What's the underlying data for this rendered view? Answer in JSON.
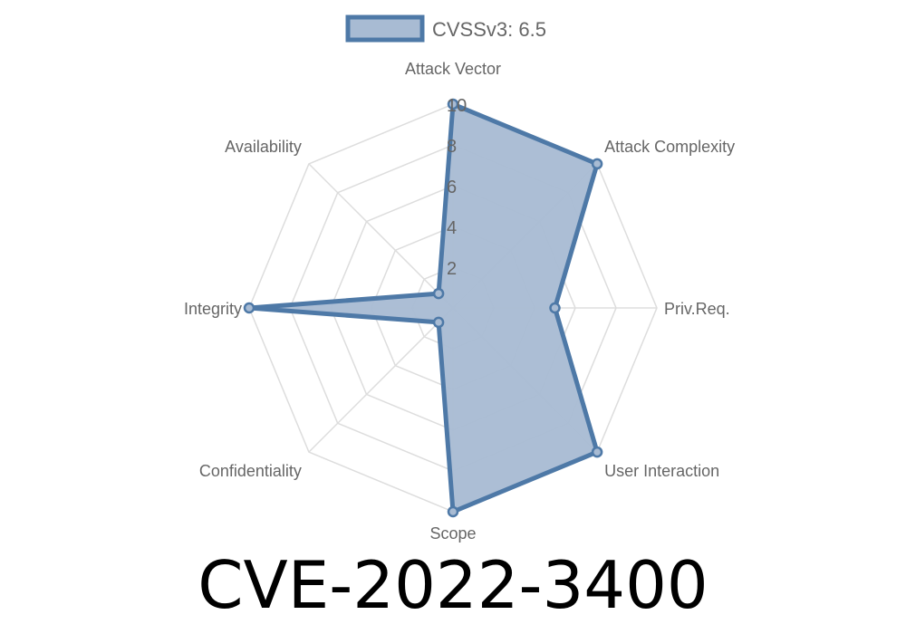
{
  "chart_data": {
    "type": "radar",
    "axes": [
      "Attack Vector",
      "Attack Complexity",
      "Priv.Req.",
      "User Interaction",
      "Scope",
      "Confidentiality",
      "Integrity",
      "Availability"
    ],
    "series": [
      {
        "name": "CVSSv3: 6.5",
        "values": [
          10,
          10,
          5,
          10,
          10,
          1,
          10,
          1
        ]
      }
    ],
    "rlim": [
      0,
      10
    ],
    "ticks": [
      "2",
      "4",
      "6",
      "8",
      "10"
    ],
    "legend_position": "top",
    "grid": true,
    "colors": {
      "line": "#4e79a7",
      "fill": "#a8bbd3",
      "grid": "#dddddd"
    }
  },
  "title": "CVE-2022-3400"
}
